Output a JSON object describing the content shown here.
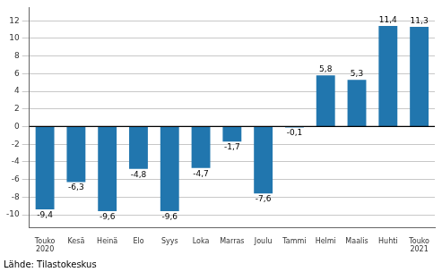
{
  "chart_data": {
    "type": "bar",
    "categories": [
      "Touko\n2020",
      "Kesä",
      "Heinä",
      "Elo",
      "Syys",
      "Loka",
      "Marras",
      "Joulu",
      "Tammi",
      "Helmi",
      "Maalis",
      "Huhti",
      "Touko\n2021"
    ],
    "values": [
      -9.4,
      -6.3,
      -9.6,
      -4.8,
      -9.6,
      -4.7,
      -1.7,
      -7.6,
      -0.1,
      5.8,
      5.3,
      11.4,
      11.3
    ],
    "value_labels": [
      "-9,4",
      "-6,3",
      "-9,6",
      "-4,8",
      "-9,6",
      "-4,7",
      "-1,7",
      "-7,6",
      "-0,1",
      "5,8",
      "5,3",
      "11,4",
      "11,3"
    ],
    "data_labels": true,
    "color": "#2176ae",
    "ylim": [
      -11.5,
      13.5
    ],
    "yticks": [
      -10,
      -8,
      -6,
      -4,
      -2,
      0,
      2,
      4,
      6,
      8,
      10,
      12
    ],
    "grid": true,
    "annotations": [
      "Lähde: Tilastokeskus"
    ]
  }
}
